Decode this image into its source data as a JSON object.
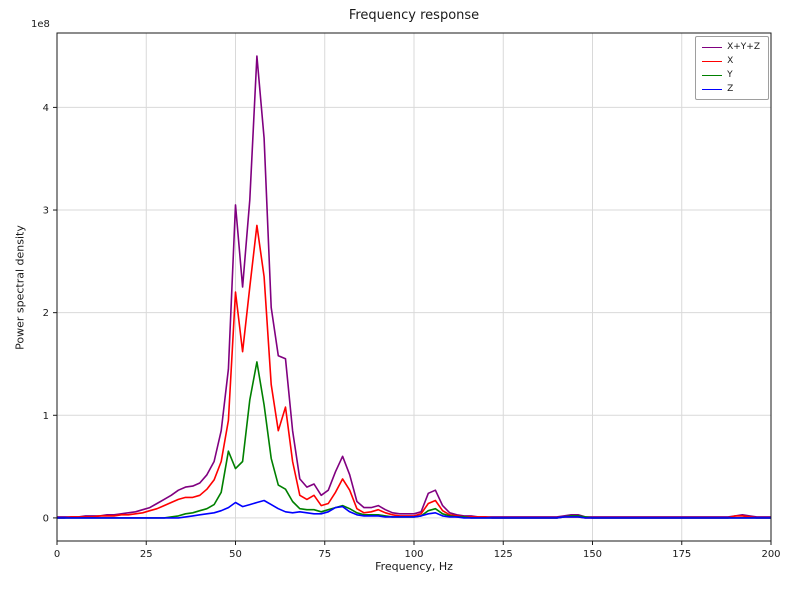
{
  "chart_data": {
    "type": "line",
    "title": "Frequency response",
    "xlabel": "Frequency, Hz",
    "ylabel": "Power spectral density",
    "y_offset_label": "1e8",
    "y_unit_multiplier": 100000000,
    "xlim": [
      0,
      200
    ],
    "ylim_units": [
      -0.225,
      4.725
    ],
    "x_ticks": [
      0,
      25,
      50,
      75,
      100,
      125,
      150,
      175,
      200
    ],
    "y_ticks": [
      0,
      1,
      2,
      3,
      4
    ],
    "grid": true,
    "legend_position": "upper right",
    "x": [
      0,
      2,
      4,
      6,
      8,
      10,
      12,
      14,
      16,
      18,
      20,
      22,
      24,
      26,
      28,
      30,
      32,
      34,
      36,
      38,
      40,
      42,
      44,
      46,
      48,
      50,
      52,
      54,
      56,
      58,
      60,
      62,
      64,
      66,
      68,
      70,
      72,
      74,
      76,
      78,
      80,
      82,
      84,
      86,
      88,
      90,
      92,
      94,
      96,
      98,
      100,
      102,
      104,
      106,
      108,
      110,
      112,
      114,
      116,
      118,
      120,
      122,
      124,
      126,
      128,
      130,
      132,
      134,
      136,
      138,
      140,
      142,
      144,
      146,
      148,
      150,
      152,
      154,
      156,
      158,
      160,
      162,
      164,
      166,
      168,
      170,
      172,
      174,
      176,
      178,
      180,
      182,
      184,
      186,
      188,
      190,
      192,
      194,
      196,
      198,
      200
    ],
    "series": [
      {
        "name": "X+Y+Z",
        "color": "#800080",
        "values": [
          0.01,
          0.01,
          0.01,
          0.01,
          0.02,
          0.02,
          0.02,
          0.03,
          0.03,
          0.04,
          0.05,
          0.06,
          0.08,
          0.1,
          0.14,
          0.18,
          0.22,
          0.27,
          0.3,
          0.31,
          0.34,
          0.42,
          0.55,
          0.85,
          1.45,
          3.05,
          2.25,
          3.1,
          4.5,
          3.7,
          2.05,
          1.58,
          1.55,
          0.85,
          0.38,
          0.3,
          0.33,
          0.22,
          0.27,
          0.45,
          0.6,
          0.42,
          0.16,
          0.1,
          0.1,
          0.12,
          0.08,
          0.05,
          0.04,
          0.04,
          0.04,
          0.06,
          0.24,
          0.27,
          0.12,
          0.05,
          0.03,
          0.02,
          0.02,
          0.01,
          0.01,
          0.01,
          0.01,
          0.01,
          0.01,
          0.01,
          0.01,
          0.01,
          0.01,
          0.01,
          0.01,
          0.02,
          0.03,
          0.03,
          0.01,
          0.01,
          0.01,
          0.01,
          0.01,
          0.01,
          0.01,
          0.01,
          0.01,
          0.01,
          0.01,
          0.01,
          0.01,
          0.01,
          0.01,
          0.01,
          0.01,
          0.01,
          0.01,
          0.01,
          0.01,
          0.02,
          0.03,
          0.02,
          0.01,
          0.01,
          0.01
        ]
      },
      {
        "name": "X",
        "color": "#ff0000",
        "values": [
          0.0,
          0.0,
          0.01,
          0.01,
          0.01,
          0.01,
          0.02,
          0.02,
          0.02,
          0.03,
          0.03,
          0.04,
          0.05,
          0.07,
          0.09,
          0.12,
          0.15,
          0.18,
          0.2,
          0.2,
          0.22,
          0.28,
          0.37,
          0.55,
          0.95,
          2.2,
          1.62,
          2.25,
          2.85,
          2.35,
          1.3,
          0.85,
          1.08,
          0.55,
          0.22,
          0.18,
          0.22,
          0.12,
          0.14,
          0.25,
          0.38,
          0.27,
          0.09,
          0.05,
          0.06,
          0.08,
          0.05,
          0.03,
          0.02,
          0.02,
          0.02,
          0.04,
          0.14,
          0.17,
          0.07,
          0.03,
          0.02,
          0.01,
          0.01,
          0.01,
          0.01,
          0.0,
          0.0,
          0.0,
          0.0,
          0.0,
          0.0,
          0.0,
          0.0,
          0.0,
          0.0,
          0.01,
          0.01,
          0.01,
          0.0,
          0.0,
          0.0,
          0.0,
          0.0,
          0.0,
          0.0,
          0.0,
          0.0,
          0.0,
          0.0,
          0.0,
          0.0,
          0.0,
          0.0,
          0.0,
          0.0,
          0.0,
          0.0,
          0.0,
          0.0,
          0.02,
          0.02,
          0.01,
          0.0,
          0.0,
          0.0
        ]
      },
      {
        "name": "Y",
        "color": "#008000",
        "values": [
          0.0,
          0.0,
          0.0,
          0.0,
          0.0,
          0.0,
          0.0,
          0.0,
          0.0,
          0.0,
          0.0,
          0.0,
          0.0,
          0.0,
          0.0,
          0.0,
          0.01,
          0.02,
          0.04,
          0.05,
          0.07,
          0.09,
          0.13,
          0.25,
          0.65,
          0.48,
          0.55,
          1.15,
          1.52,
          1.1,
          0.58,
          0.32,
          0.28,
          0.16,
          0.09,
          0.08,
          0.08,
          0.06,
          0.08,
          0.1,
          0.12,
          0.09,
          0.05,
          0.03,
          0.03,
          0.03,
          0.02,
          0.01,
          0.01,
          0.01,
          0.01,
          0.02,
          0.07,
          0.09,
          0.04,
          0.02,
          0.01,
          0.01,
          0.0,
          0.0,
          0.0,
          0.0,
          0.0,
          0.0,
          0.0,
          0.0,
          0.0,
          0.0,
          0.0,
          0.0,
          0.0,
          0.01,
          0.02,
          0.02,
          0.01,
          0.0,
          0.0,
          0.0,
          0.0,
          0.0,
          0.0,
          0.0,
          0.0,
          0.0,
          0.0,
          0.0,
          0.0,
          0.0,
          0.0,
          0.0,
          0.0,
          0.0,
          0.0,
          0.0,
          0.0,
          0.0,
          0.0,
          0.0,
          0.0,
          0.0,
          0.0
        ]
      },
      {
        "name": "Z",
        "color": "#0000ff",
        "values": [
          0.0,
          0.0,
          0.0,
          0.0,
          0.0,
          0.0,
          0.0,
          0.0,
          0.0,
          0.0,
          0.0,
          0.0,
          0.0,
          0.0,
          0.0,
          0.0,
          0.0,
          0.0,
          0.01,
          0.02,
          0.03,
          0.04,
          0.05,
          0.07,
          0.1,
          0.15,
          0.11,
          0.13,
          0.15,
          0.17,
          0.13,
          0.09,
          0.06,
          0.05,
          0.06,
          0.05,
          0.04,
          0.04,
          0.06,
          0.1,
          0.11,
          0.06,
          0.03,
          0.02,
          0.02,
          0.02,
          0.01,
          0.01,
          0.01,
          0.01,
          0.01,
          0.02,
          0.04,
          0.05,
          0.02,
          0.01,
          0.01,
          0.0,
          0.0,
          0.0,
          0.0,
          0.0,
          0.0,
          0.0,
          0.0,
          0.0,
          0.0,
          0.0,
          0.0,
          0.0,
          0.0,
          0.01,
          0.01,
          0.01,
          0.0,
          0.0,
          0.0,
          0.0,
          0.0,
          0.0,
          0.0,
          0.0,
          0.0,
          0.0,
          0.0,
          0.0,
          0.0,
          0.0,
          0.0,
          0.0,
          0.0,
          0.0,
          0.0,
          0.0,
          0.0,
          0.0,
          0.0,
          0.0,
          0.0,
          0.0,
          0.0
        ]
      }
    ]
  }
}
